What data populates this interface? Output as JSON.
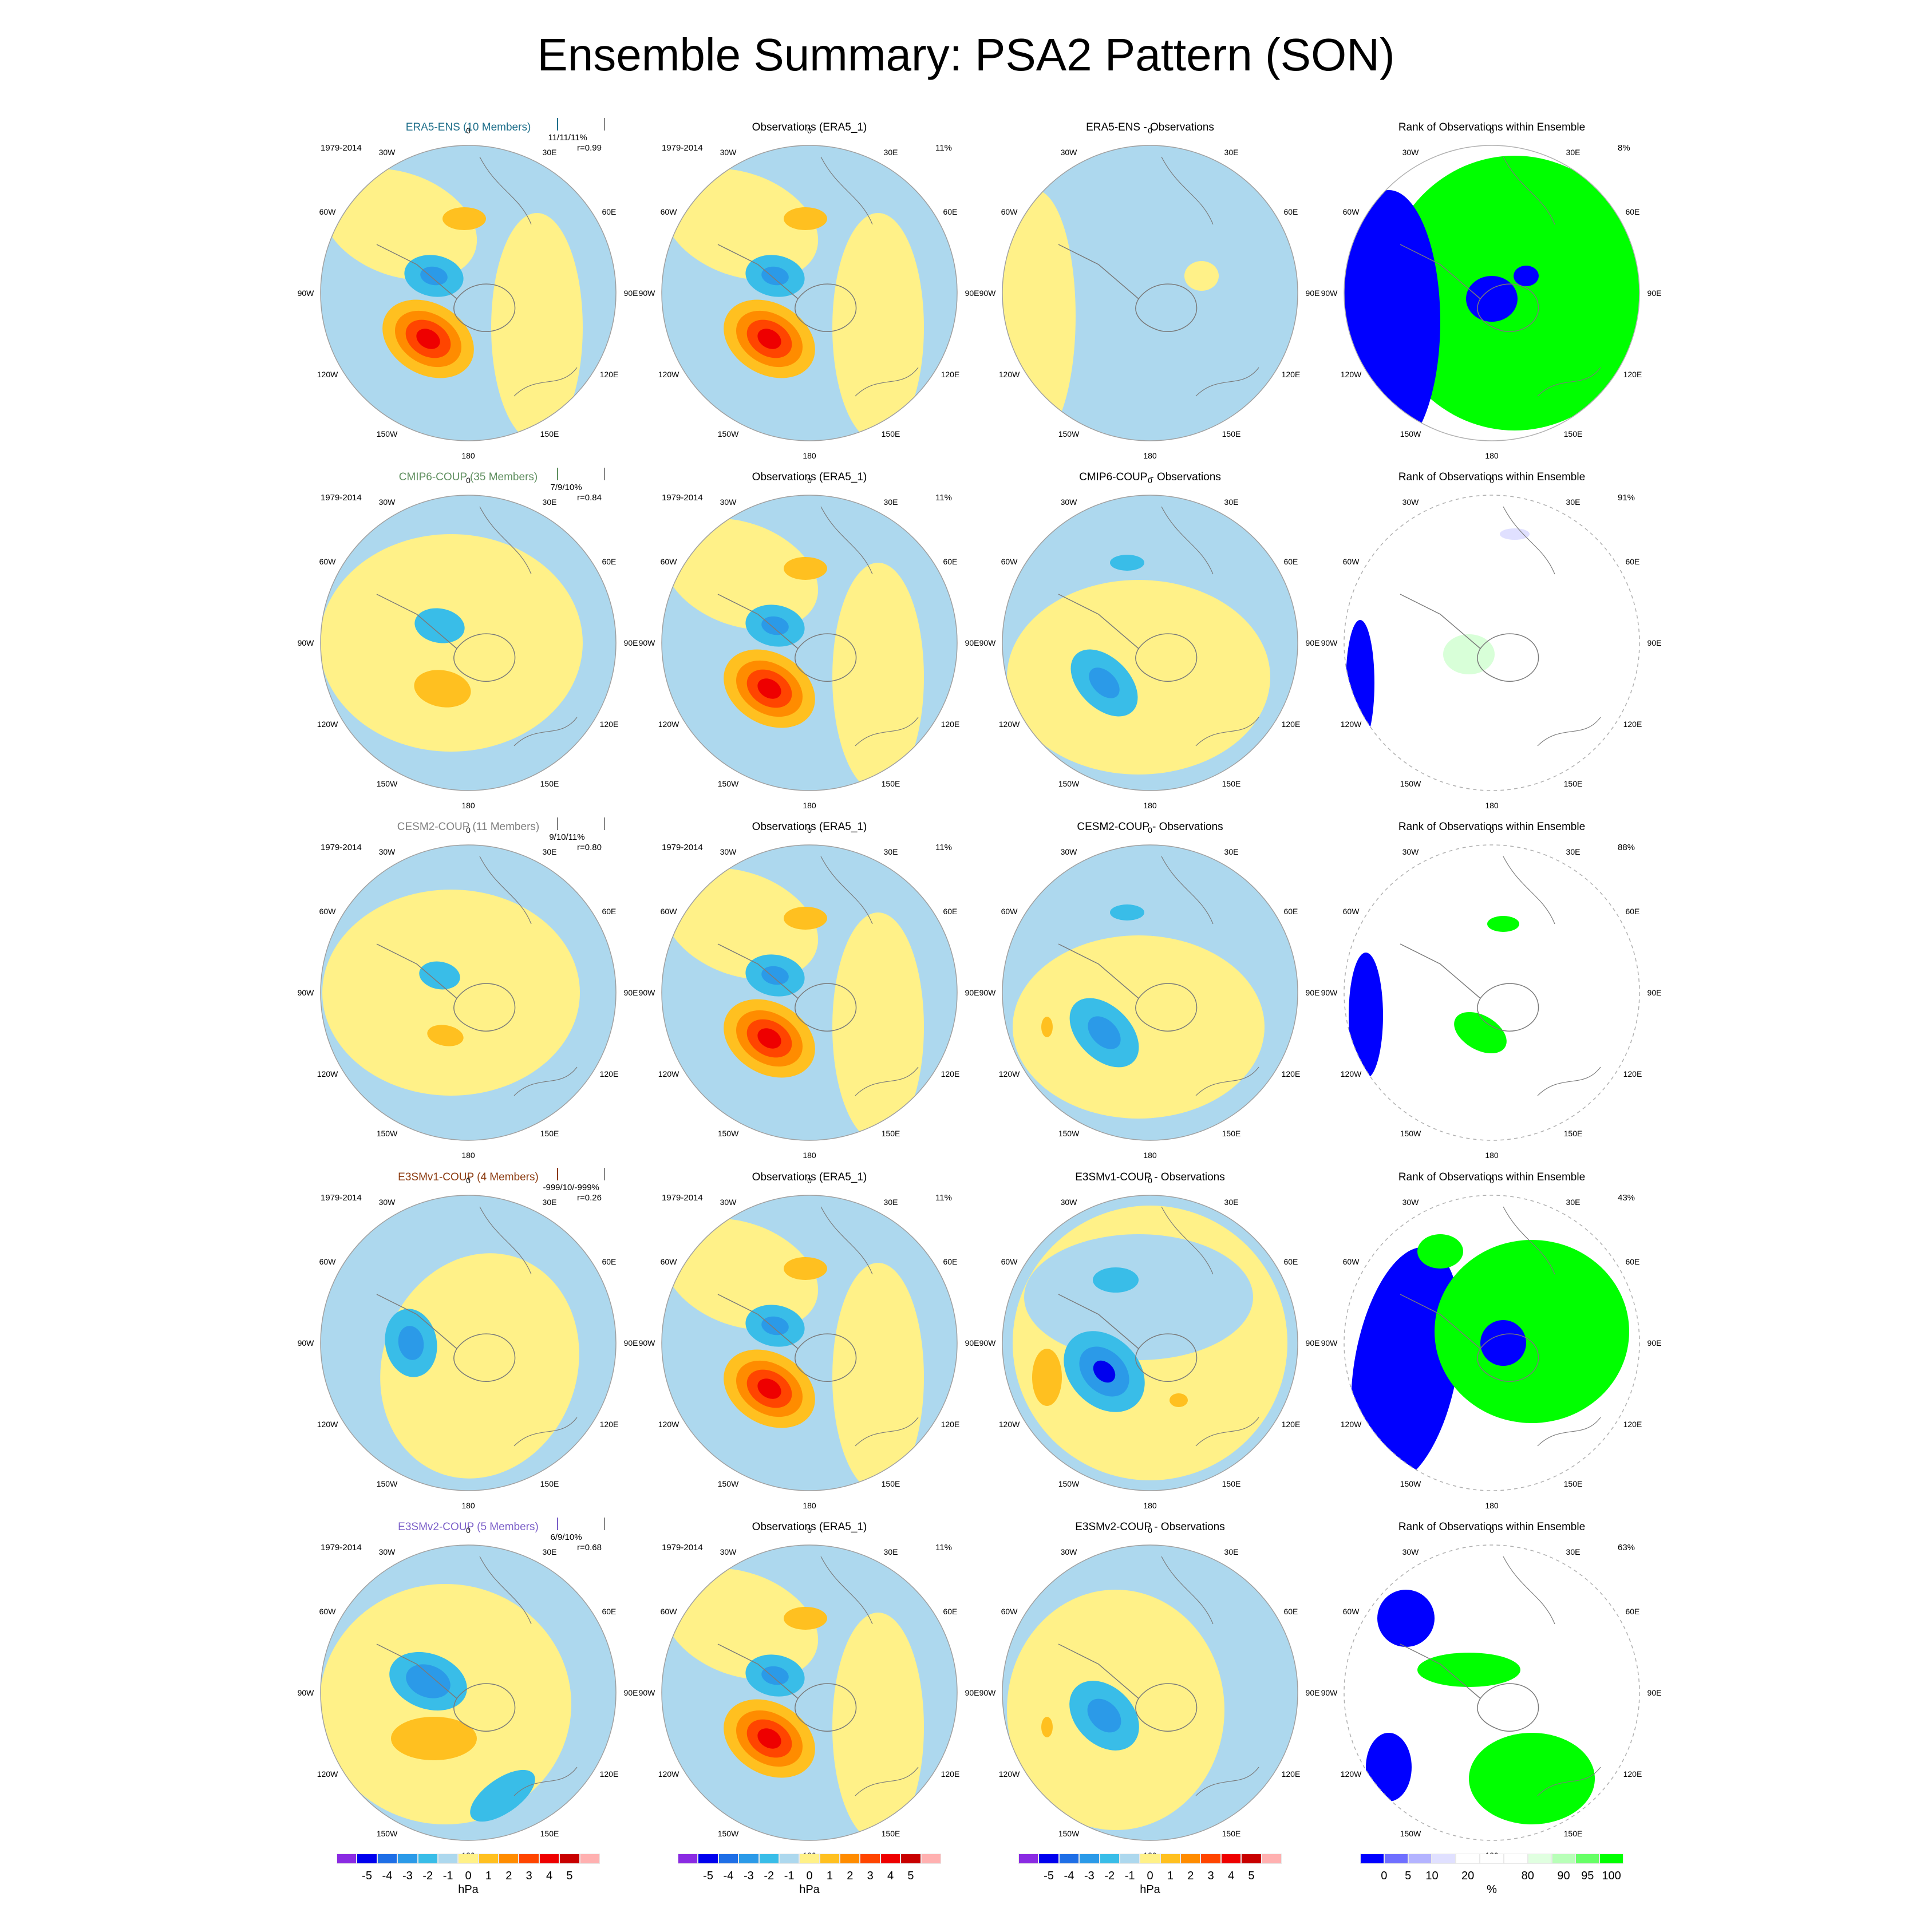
{
  "title": "Ensemble Summary: PSA2 Pattern (SON)",
  "colors": {
    "blue": "#add8ee",
    "yellow": "#fff188",
    "rank_blue": "#0000ff",
    "rank_green": "#00ff00"
  },
  "rows": [
    {
      "model_title": "ERA5-ENS (10 Members)",
      "model_color": "#1f6f8b",
      "period": "1979-2014",
      "stats": "11/11/11%",
      "corr": "r=0.99",
      "obs_title": "Observations (ERA5_1)",
      "obs_period": "1979-2014",
      "obs_pct": "11%",
      "diff_title": "ERA5-ENS - Observations",
      "rank_title": "Rank of Observations within Ensemble",
      "rank_pct": "8%"
    },
    {
      "model_title": "CMIP6-COUP (35 Members)",
      "model_color": "#5f8f5f",
      "period": "1979-2014",
      "stats": "7/9/10%",
      "corr": "r=0.84",
      "obs_title": "Observations (ERA5_1)",
      "obs_period": "1979-2014",
      "obs_pct": "11%",
      "diff_title": "CMIP6-COUP - Observations",
      "rank_title": "Rank of Observations within Ensemble",
      "rank_pct": "91%"
    },
    {
      "model_title": "CESM2-COUP (11 Members)",
      "model_color": "#808080",
      "period": "1979-2014",
      "stats": "9/10/11%",
      "corr": "r=0.80",
      "obs_title": "Observations (ERA5_1)",
      "obs_period": "1979-2014",
      "obs_pct": "11%",
      "diff_title": "CESM2-COUP - Observations",
      "rank_title": "Rank of Observations within Ensemble",
      "rank_pct": "88%"
    },
    {
      "model_title": "E3SMv1-COUP (4 Members)",
      "model_color": "#8b3a0f",
      "period": "1979-2014",
      "stats": "-999/10/-999%",
      "corr": "r=0.26",
      "obs_title": "Observations (ERA5_1)",
      "obs_period": "1979-2014",
      "obs_pct": "11%",
      "diff_title": "E3SMv1-COUP - Observations",
      "rank_title": "Rank of Observations within Ensemble",
      "rank_pct": "43%"
    },
    {
      "model_title": "E3SMv2-COUP (5 Members)",
      "model_color": "#7b5fc8",
      "period": "1979-2014",
      "stats": "6/9/10%",
      "corr": "r=0.68",
      "obs_title": "Observations (ERA5_1)",
      "obs_period": "1979-2014",
      "obs_pct": "11%",
      "diff_title": "E3SMv2-COUP - Observations",
      "rank_title": "Rank of Observations within Ensemble",
      "rank_pct": "63%"
    }
  ],
  "lon_labels": [
    "0",
    "30E",
    "60E",
    "90E",
    "120E",
    "150E",
    "180",
    "150W",
    "120W",
    "90W",
    "60W",
    "30W"
  ],
  "hpa_colorbar": {
    "colors": [
      "#8a2be2",
      "#0000ee",
      "#1e6ee6",
      "#2b9ae8",
      "#39bde8",
      "#add8ee",
      "#fff188",
      "#ffc020",
      "#ff8c00",
      "#ff4500",
      "#ee0000",
      "#c80000",
      "#ffb0b0"
    ],
    "labels": [
      "-5",
      "-4",
      "-3",
      "-2",
      "-1",
      "0",
      "1",
      "2",
      "3",
      "4",
      "5"
    ],
    "unit": "hPa"
  },
  "rank_colorbar": {
    "colors": [
      "#0000ff",
      "#6f6fff",
      "#b3b3ff",
      "#e0e0ff",
      "#ffffff",
      "#ffffff",
      "#ffffff",
      "#e0ffe0",
      "#b8ffb8",
      "#66ff66",
      "#00ff00"
    ],
    "labels": [
      "0",
      "5",
      "10",
      "20",
      "80",
      "90",
      "95",
      "100"
    ],
    "unit": "%"
  }
}
